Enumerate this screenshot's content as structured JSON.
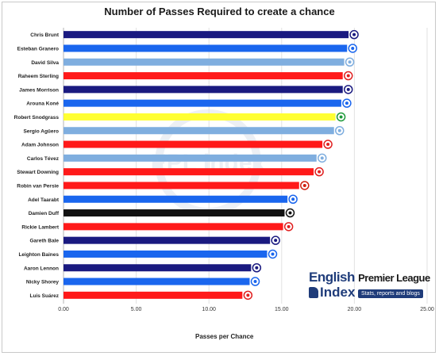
{
  "chart_data": {
    "type": "bar",
    "orientation": "horizontal",
    "title": "Number of Passes Required to create a chance",
    "xlabel": "Passes per Chance",
    "ylabel": "",
    "xlim": [
      0,
      25
    ],
    "x_ticks": [
      "0.00",
      "5.00",
      "10.00",
      "15.00",
      "20.00",
      "25.00"
    ],
    "grid": true,
    "categories": [
      "Chris Brunt",
      "Esteban Granero",
      "David Silva",
      "Raheem Sterling",
      "James Morrison",
      "Arouna Koné",
      "Robert Snodgrass",
      "Sergio Agüero",
      "Adam Johnson",
      "Carlos Tévez",
      "Stewart Downing",
      "Robin van Persie",
      "Adel Taarabt",
      "Damien Duff",
      "Rickie Lambert",
      "Gareth Bale",
      "Leighton Baines",
      "Aaron Lennon",
      "Nicky Shorey",
      "Luis Suárez"
    ],
    "values": [
      19.6,
      19.5,
      19.3,
      19.2,
      19.2,
      19.1,
      18.7,
      18.6,
      17.8,
      17.4,
      17.2,
      16.2,
      15.4,
      15.2,
      15.1,
      14.2,
      14.0,
      12.9,
      12.8,
      12.3
    ],
    "bar_colors": [
      "#1a1a80",
      "#1a66ee",
      "#7faedf",
      "#ff1a1a",
      "#1a1a80",
      "#1a66ee",
      "#ffff33",
      "#7faedf",
      "#ff1a1a",
      "#7faedf",
      "#ff1a1a",
      "#ff1a1a",
      "#1a66ee",
      "#111111",
      "#ff1a1a",
      "#1a1a80",
      "#1a66ee",
      "#1a1a80",
      "#1a66ee",
      "#ff1a1a"
    ],
    "badge_colors": [
      "#1a1a80",
      "#1a66ee",
      "#7faedf",
      "#e02020",
      "#1a1a80",
      "#1a66ee",
      "#1e9a3a",
      "#7faedf",
      "#e02020",
      "#7faedf",
      "#e02020",
      "#d02010",
      "#1a66ee",
      "#111111",
      "#e02020",
      "#1a1a80",
      "#1a66ee",
      "#1a1a80",
      "#1a66ee",
      "#e02020"
    ]
  },
  "logo": {
    "line1": "English",
    "line1b": "Premier League",
    "line2": "Index",
    "tagline": "Stats, reports and blogs"
  },
  "watermark": "EPL index"
}
